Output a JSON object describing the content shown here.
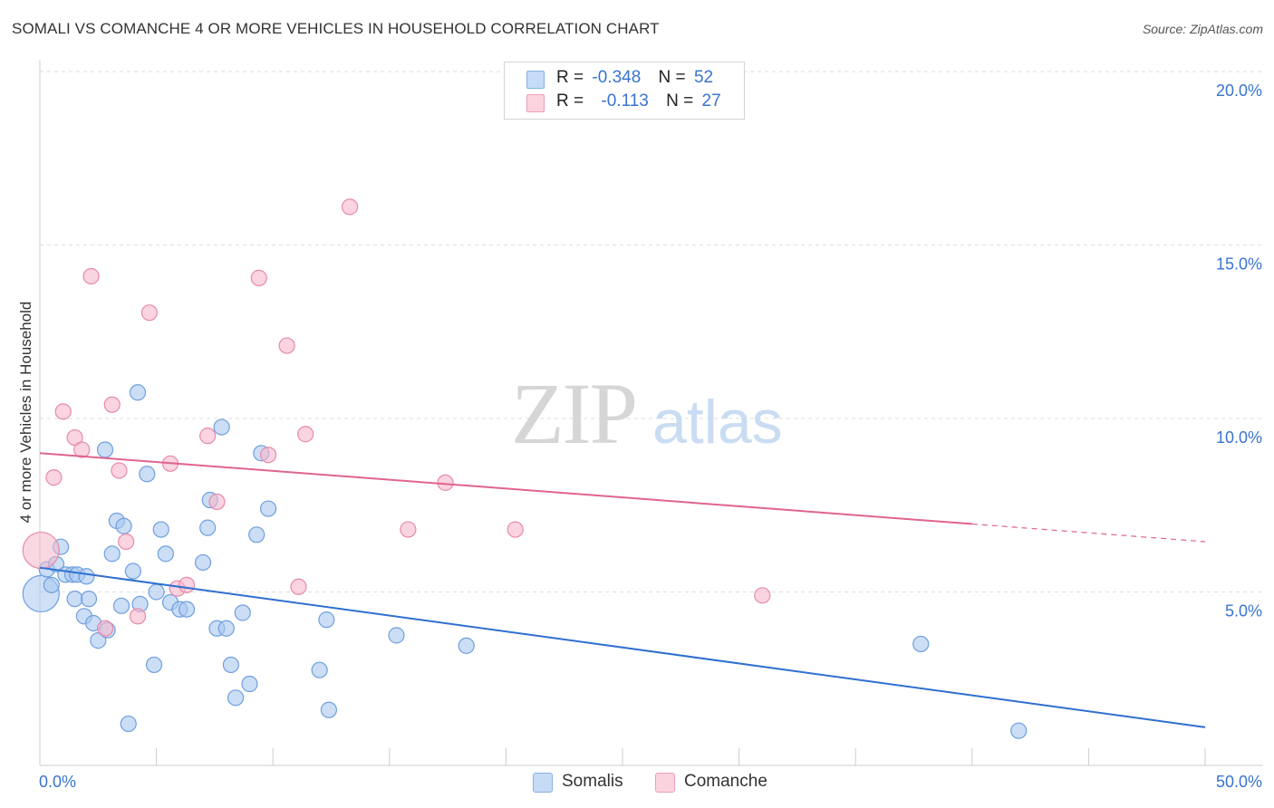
{
  "header": {
    "title": "SOMALI VS COMANCHE 4 OR MORE VEHICLES IN HOUSEHOLD CORRELATION CHART",
    "source": "Source: ZipAtlas.com"
  },
  "watermark": {
    "zip": "ZIP",
    "atlas": "atlas"
  },
  "legend": {
    "rows": [
      {
        "r_label": "R =",
        "r_value": "-0.348",
        "n_label": "N =",
        "n_value": "52",
        "color": "#a9c8f0"
      },
      {
        "r_label": "R =",
        "r_value": "-0.113",
        "n_label": "N =",
        "n_value": "27",
        "color": "#f6b8cb"
      }
    ]
  },
  "bottom_legend": [
    {
      "label": "Somalis",
      "color": "#a9c8f0"
    },
    {
      "label": "Comanche",
      "color": "#f6b8cb"
    }
  ],
  "chart_data": {
    "type": "scatter",
    "ylabel": "4 or more Vehicles in Household",
    "xlim": [
      0,
      50
    ],
    "ylim": [
      0,
      20
    ],
    "x_tick_labels": [
      "0.0%",
      "50.0%"
    ],
    "y_tick_labels": [
      "20.0%",
      "15.0%",
      "10.0%",
      "5.0%"
    ],
    "y_ticks": [
      20,
      15,
      10,
      5
    ],
    "colors": {
      "somalis_fill": "#a9c8f0",
      "somalis_stroke": "#6f9fdf",
      "somalis_line": "#2f6fd0",
      "comanche_fill": "#f6b8cb",
      "comanche_stroke": "#e78aa8",
      "comanche_line": "#e0648e",
      "tick_label": "#3874cf"
    },
    "series": [
      {
        "name": "Somalis",
        "points": [
          {
            "x": 0.05,
            "y": 4.95,
            "big": true
          },
          {
            "x": 0.3,
            "y": 5.65
          },
          {
            "x": 0.5,
            "y": 5.2
          },
          {
            "x": 0.7,
            "y": 5.8
          },
          {
            "x": 0.9,
            "y": 6.3
          },
          {
            "x": 1.1,
            "y": 5.5
          },
          {
            "x": 1.4,
            "y": 5.5
          },
          {
            "x": 1.5,
            "y": 4.8
          },
          {
            "x": 1.6,
            "y": 5.5
          },
          {
            "x": 1.9,
            "y": 4.3
          },
          {
            "x": 2.0,
            "y": 5.45
          },
          {
            "x": 2.1,
            "y": 4.8
          },
          {
            "x": 2.3,
            "y": 4.1
          },
          {
            "x": 2.5,
            "y": 3.6
          },
          {
            "x": 2.8,
            "y": 9.1
          },
          {
            "x": 2.9,
            "y": 3.9
          },
          {
            "x": 3.1,
            "y": 6.1
          },
          {
            "x": 3.3,
            "y": 7.05
          },
          {
            "x": 3.5,
            "y": 4.6
          },
          {
            "x": 3.6,
            "y": 6.9
          },
          {
            "x": 3.8,
            "y": 1.2
          },
          {
            "x": 4.0,
            "y": 5.6
          },
          {
            "x": 4.2,
            "y": 10.75
          },
          {
            "x": 4.3,
            "y": 4.65
          },
          {
            "x": 4.6,
            "y": 8.4
          },
          {
            "x": 4.9,
            "y": 2.9
          },
          {
            "x": 5.0,
            "y": 5.0
          },
          {
            "x": 5.2,
            "y": 6.8
          },
          {
            "x": 5.4,
            "y": 6.1
          },
          {
            "x": 5.6,
            "y": 4.7
          },
          {
            "x": 6.0,
            "y": 4.5
          },
          {
            "x": 6.3,
            "y": 4.5
          },
          {
            "x": 7.0,
            "y": 5.85
          },
          {
            "x": 7.3,
            "y": 7.65
          },
          {
            "x": 7.2,
            "y": 6.85
          },
          {
            "x": 7.6,
            "y": 3.95
          },
          {
            "x": 7.8,
            "y": 9.75
          },
          {
            "x": 8.0,
            "y": 3.95
          },
          {
            "x": 8.2,
            "y": 2.9
          },
          {
            "x": 8.4,
            "y": 1.95
          },
          {
            "x": 8.7,
            "y": 4.4
          },
          {
            "x": 9.0,
            "y": 2.35
          },
          {
            "x": 9.3,
            "y": 6.65
          },
          {
            "x": 9.5,
            "y": 9.0
          },
          {
            "x": 9.8,
            "y": 7.4
          },
          {
            "x": 12.0,
            "y": 2.75
          },
          {
            "x": 12.3,
            "y": 4.2
          },
          {
            "x": 12.4,
            "y": 1.6
          },
          {
            "x": 15.3,
            "y": 3.75
          },
          {
            "x": 18.3,
            "y": 3.45
          },
          {
            "x": 37.8,
            "y": 3.5
          },
          {
            "x": 42.0,
            "y": 1.0
          }
        ],
        "trend": {
          "x0": 0,
          "y0": 5.7,
          "x1": 50,
          "y1": 1.1,
          "dash_from": null
        }
      },
      {
        "name": "Comanche",
        "points": [
          {
            "x": 0.05,
            "y": 6.2,
            "big": true
          },
          {
            "x": 0.6,
            "y": 8.3
          },
          {
            "x": 1.0,
            "y": 10.2
          },
          {
            "x": 1.5,
            "y": 9.45
          },
          {
            "x": 1.8,
            "y": 9.1
          },
          {
            "x": 2.2,
            "y": 14.1
          },
          {
            "x": 2.8,
            "y": 3.95
          },
          {
            "x": 3.1,
            "y": 10.4
          },
          {
            "x": 3.4,
            "y": 8.5
          },
          {
            "x": 3.7,
            "y": 6.45
          },
          {
            "x": 4.2,
            "y": 4.3
          },
          {
            "x": 4.7,
            "y": 13.05
          },
          {
            "x": 5.6,
            "y": 8.7
          },
          {
            "x": 5.9,
            "y": 5.1
          },
          {
            "x": 6.3,
            "y": 5.2
          },
          {
            "x": 7.2,
            "y": 9.5
          },
          {
            "x": 7.6,
            "y": 7.6
          },
          {
            "x": 9.4,
            "y": 14.05
          },
          {
            "x": 9.8,
            "y": 8.95
          },
          {
            "x": 10.6,
            "y": 12.1
          },
          {
            "x": 11.1,
            "y": 5.15
          },
          {
            "x": 11.4,
            "y": 9.55
          },
          {
            "x": 13.3,
            "y": 16.1
          },
          {
            "x": 15.8,
            "y": 6.8
          },
          {
            "x": 17.4,
            "y": 8.15
          },
          {
            "x": 20.4,
            "y": 6.8
          },
          {
            "x": 31.0,
            "y": 4.9
          }
        ],
        "trend": {
          "x0": 0,
          "y0": 9.0,
          "x1": 50,
          "y1": 6.45,
          "dash_from": 40
        }
      }
    ]
  }
}
